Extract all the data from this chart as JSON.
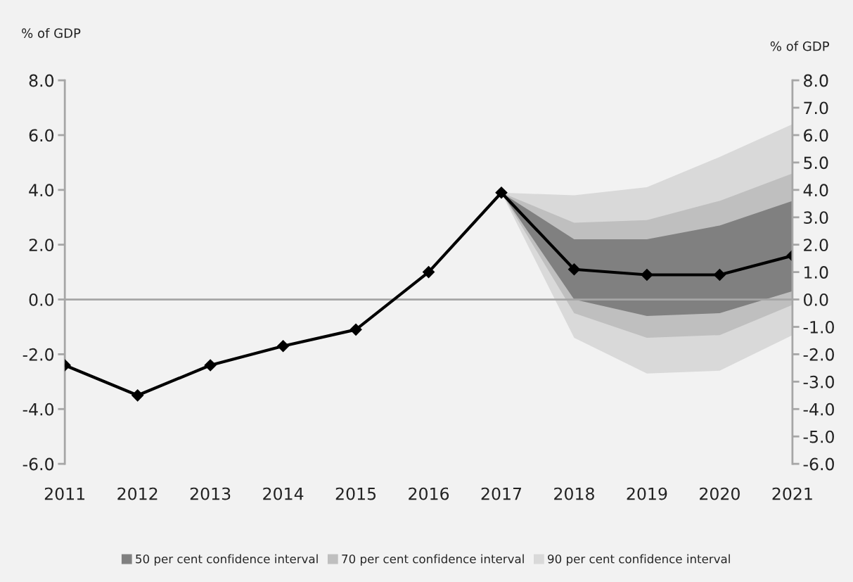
{
  "chart_data": {
    "type": "line",
    "categories": [
      "2011",
      "2012",
      "2013",
      "2014",
      "2015",
      "2016",
      "2017",
      "2018",
      "2019",
      "2020",
      "2021"
    ],
    "series": [
      {
        "name": "90 per cent confidence interval",
        "color": "#d9d9d9",
        "values": [
          null,
          null,
          null,
          null,
          null,
          null,
          null,
          null,
          null,
          null,
          null
        ],
        "lower": [
          null,
          null,
          null,
          null,
          null,
          null,
          3.9,
          -1.4,
          -2.7,
          -2.6,
          -1.3
        ],
        "upper": [
          null,
          null,
          null,
          null,
          null,
          null,
          3.9,
          3.8,
          4.1,
          5.2,
          6.4
        ]
      },
      {
        "name": "70 per cent confidence interval",
        "color": "#bfbfbf",
        "values": [
          null,
          null,
          null,
          null,
          null,
          null,
          null,
          null,
          null,
          null,
          null
        ],
        "lower": [
          null,
          null,
          null,
          null,
          null,
          null,
          3.9,
          -0.5,
          -1.4,
          -1.3,
          -0.2
        ],
        "upper": [
          null,
          null,
          null,
          null,
          null,
          null,
          3.9,
          2.8,
          2.9,
          3.6,
          4.6
        ]
      },
      {
        "name": "50 per cent confidence interval",
        "color": "#808080",
        "values": [
          null,
          null,
          null,
          null,
          null,
          null,
          null,
          null,
          null,
          null,
          null
        ],
        "lower": [
          null,
          null,
          null,
          null,
          null,
          null,
          3.9,
          0.0,
          -0.6,
          -0.5,
          0.3
        ],
        "upper": [
          null,
          null,
          null,
          null,
          null,
          null,
          3.9,
          2.2,
          2.2,
          2.7,
          3.6
        ]
      },
      {
        "type": "line",
        "color": "#000000",
        "marker": "diamond",
        "values": [
          -2.4,
          -3.5,
          -2.4,
          -1.7,
          -1.1,
          1.0,
          3.9,
          1.1,
          0.9,
          0.9,
          1.6
        ]
      }
    ],
    "ylabel": "% of GDP",
    "y2label": "% of GDP",
    "ylim": [
      -6,
      8
    ],
    "yticks": [
      {
        "value": -6,
        "label": "-6.0"
      },
      {
        "value": -4,
        "label": "-4.0"
      },
      {
        "value": -2,
        "label": "-2.0"
      },
      {
        "value": 0,
        "label": "0.0"
      },
      {
        "value": 2,
        "label": "2.0"
      },
      {
        "value": 4,
        "label": "4.0"
      },
      {
        "value": 6,
        "label": "6.0"
      },
      {
        "value": 8,
        "label": "8.0"
      }
    ],
    "y2lim": [
      -6,
      8
    ],
    "y2ticks": [
      {
        "value": -6,
        "label": "-6.0"
      },
      {
        "value": -5,
        "label": "-5.0"
      },
      {
        "value": -4,
        "label": "-4.0"
      },
      {
        "value": -3,
        "label": "-3.0"
      },
      {
        "value": -2,
        "label": "-2.0"
      },
      {
        "value": -1,
        "label": "-1.0"
      },
      {
        "value": 0,
        "label": "0.0"
      },
      {
        "value": 1,
        "label": "1.0"
      },
      {
        "value": 2,
        "label": "2.0"
      },
      {
        "value": 3,
        "label": "3.0"
      },
      {
        "value": 4,
        "label": "4.0"
      },
      {
        "value": 5,
        "label": "5.0"
      },
      {
        "value": 6,
        "label": "6.0"
      },
      {
        "value": 7,
        "label": "7.0"
      },
      {
        "value": 8,
        "label": "8.0"
      }
    ],
    "ref_lines": [
      {
        "axis": "y",
        "value": 0,
        "color": "#a6a6a6"
      }
    ],
    "line_style": "solid",
    "grid": false,
    "legend": "bottom"
  }
}
